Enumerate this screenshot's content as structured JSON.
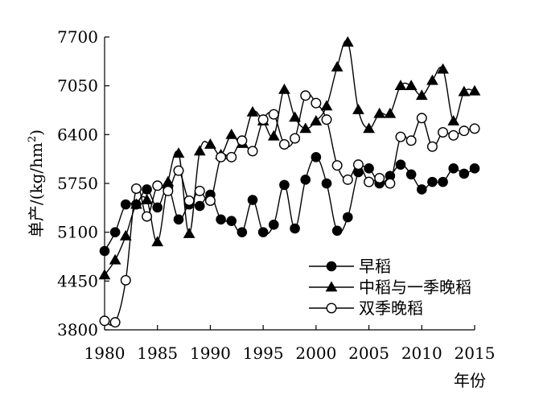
{
  "chart_data": {
    "type": "line",
    "title": "",
    "xlabel": "年份",
    "ylabel": "单产/(kg/hm²)",
    "ylabel_parts": {
      "pre": "单产/(kg/hm",
      "sup": "2",
      "post": ")"
    },
    "xlim": [
      1980,
      2015
    ],
    "ylim": [
      3800,
      7700
    ],
    "xticks": [
      "1980",
      "1985",
      "1990",
      "1995",
      "2000",
      "2005",
      "2010",
      "2015"
    ],
    "yticks": [
      "3800",
      "4450",
      "5100",
      "5750",
      "6400",
      "7050",
      "7700"
    ],
    "grid": false,
    "legend_position": "bottom-right",
    "x": [
      1980,
      1981,
      1982,
      1983,
      1984,
      1985,
      1986,
      1987,
      1988,
      1989,
      1990,
      1991,
      1992,
      1993,
      1994,
      1995,
      1996,
      1997,
      1998,
      1999,
      2000,
      2001,
      2002,
      2003,
      2004,
      2005,
      2006,
      2007,
      2008,
      2009,
      2010,
      2011,
      2012,
      2013,
      2014,
      2015
    ],
    "series": [
      {
        "name": "早稻",
        "marker": "circle-filled",
        "values": [
          4850,
          5100,
          5470,
          5470,
          5670,
          5430,
          5700,
          5270,
          5470,
          5450,
          5600,
          5270,
          5250,
          5100,
          5530,
          5100,
          5200,
          5730,
          5150,
          5800,
          6100,
          5750,
          5120,
          5300,
          5900,
          5950,
          5750,
          5850,
          6000,
          5870,
          5670,
          5770,
          5770,
          5950,
          5880,
          5950
        ]
      },
      {
        "name": "中稻与一季晚稻",
        "marker": "triangle-filled",
        "values": [
          4530,
          4730,
          5050,
          5470,
          5530,
          4970,
          5770,
          6150,
          5080,
          6180,
          6270,
          6130,
          6400,
          6280,
          6700,
          6580,
          6380,
          7000,
          6630,
          6480,
          6580,
          6780,
          7300,
          7630,
          6730,
          6480,
          6680,
          6680,
          7050,
          7050,
          6920,
          7120,
          7270,
          6580,
          6970,
          6980
        ]
      },
      {
        "name": "双季晚稻",
        "marker": "circle-open",
        "values": [
          3920,
          3900,
          4460,
          5680,
          5310,
          5720,
          5650,
          5920,
          5520,
          5650,
          5520,
          6100,
          6100,
          6320,
          6180,
          6600,
          6670,
          6270,
          6350,
          6920,
          6820,
          6600,
          5990,
          5800,
          6000,
          5770,
          5820,
          5750,
          6370,
          6320,
          6620,
          6240,
          6430,
          6390,
          6450,
          6480
        ]
      }
    ]
  }
}
